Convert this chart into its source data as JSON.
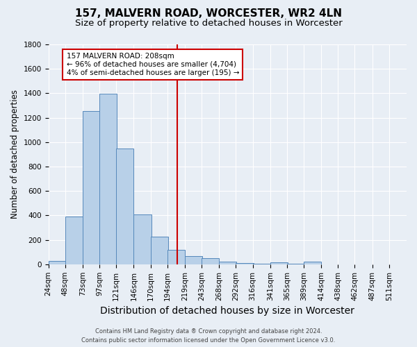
{
  "title": "157, MALVERN ROAD, WORCESTER, WR2 4LN",
  "subtitle": "Size of property relative to detached houses in Worcester",
  "xlabel": "Distribution of detached houses by size in Worcester",
  "ylabel": "Number of detached properties",
  "footer_line1": "Contains HM Land Registry data ® Crown copyright and database right 2024.",
  "footer_line2": "Contains public sector information licensed under the Open Government Licence v3.0.",
  "bar_labels": [
    "24sqm",
    "48sqm",
    "73sqm",
    "97sqm",
    "121sqm",
    "146sqm",
    "170sqm",
    "194sqm",
    "219sqm",
    "243sqm",
    "268sqm",
    "292sqm",
    "316sqm",
    "341sqm",
    "365sqm",
    "389sqm",
    "414sqm",
    "438sqm",
    "462sqm",
    "487sqm",
    "511sqm"
  ],
  "bar_values": [
    25,
    390,
    1255,
    1395,
    950,
    410,
    225,
    120,
    65,
    50,
    20,
    10,
    5,
    15,
    5,
    20,
    0,
    0,
    0,
    0,
    0
  ],
  "bar_color": "#b8d0e8",
  "bar_edge_color": "#5588bb",
  "property_line_x": 208,
  "property_line_color": "#cc0000",
  "annotation_title": "157 MALVERN ROAD: 208sqm",
  "annotation_line1": "← 96% of detached houses are smaller (4,704)",
  "annotation_line2": "4% of semi-detached houses are larger (195) →",
  "annotation_box_color": "#ffffff",
  "annotation_border_color": "#cc0000",
  "ylim": [
    0,
    1800
  ],
  "yticks": [
    0,
    200,
    400,
    600,
    800,
    1000,
    1200,
    1400,
    1600,
    1800
  ],
  "background_color": "#e8eef5",
  "grid_color": "#ffffff",
  "title_fontsize": 11,
  "subtitle_fontsize": 9.5,
  "xlabel_fontsize": 10,
  "ylabel_fontsize": 8.5,
  "tick_fontsize": 7.5,
  "footer_fontsize": 6,
  "annotation_fontsize": 7.5
}
